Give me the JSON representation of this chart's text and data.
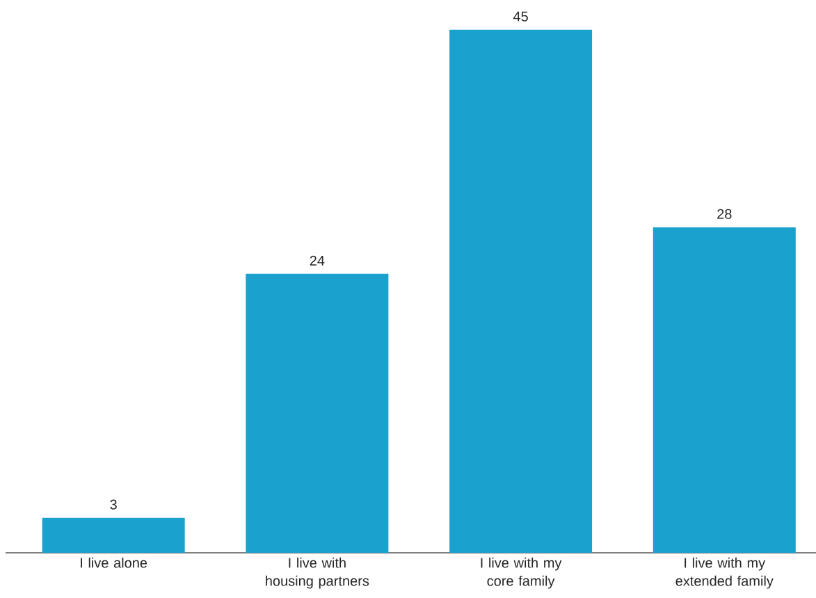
{
  "chart_data": {
    "type": "bar",
    "categories": [
      "I live alone",
      "I live with housing partners",
      "I live with my core family",
      "I live with my extended family"
    ],
    "values": [
      3,
      24,
      45,
      28
    ],
    "color": "#1aa1ce",
    "data_labels": true
  }
}
